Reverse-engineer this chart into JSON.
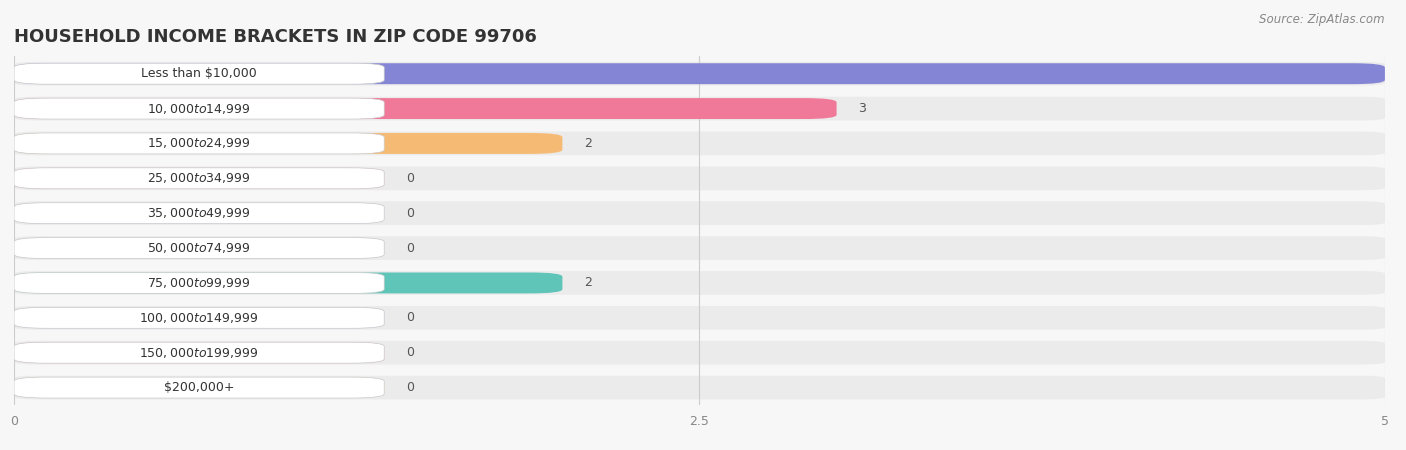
{
  "title": "HOUSEHOLD INCOME BRACKETS IN ZIP CODE 99706",
  "source": "Source: ZipAtlas.com",
  "categories": [
    "Less than $10,000",
    "$10,000 to $14,999",
    "$15,000 to $24,999",
    "$25,000 to $34,999",
    "$35,000 to $49,999",
    "$50,000 to $74,999",
    "$75,000 to $99,999",
    "$100,000 to $149,999",
    "$150,000 to $199,999",
    "$200,000+"
  ],
  "values": [
    5,
    3,
    2,
    0,
    0,
    0,
    2,
    0,
    0,
    0
  ],
  "bar_colors": [
    "#8585d5",
    "#f07898",
    "#f5bb75",
    "#f0a098",
    "#a0b8e8",
    "#c8aad8",
    "#5ec5b8",
    "#a8b0ee",
    "#f598b8",
    "#f8c898"
  ],
  "xlim": [
    0,
    5
  ],
  "xticks": [
    0,
    2.5,
    5
  ],
  "background_color": "#f7f7f7",
  "bar_bg_color": "#e5e5e5",
  "row_bg_color": "#efefef",
  "title_fontsize": 13,
  "label_fontsize": 9,
  "value_fontsize": 9
}
